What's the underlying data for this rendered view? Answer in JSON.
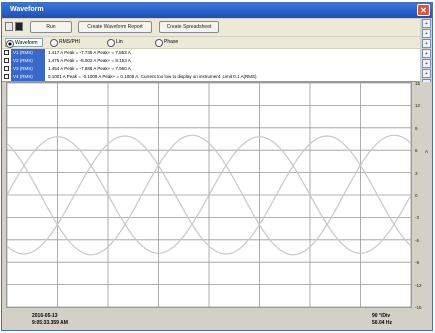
{
  "window": {
    "title": "Waveform"
  },
  "toolbar": {
    "run_label": "Run",
    "spreadsheet_btn": "Create Waveform Report",
    "report_btn": "Create Spreadsheet"
  },
  "radio": {
    "options": [
      {
        "label": "Waveform",
        "selected": true
      },
      {
        "label": "RMS/PHI",
        "selected": false
      },
      {
        "label": "Lin",
        "selected": false
      },
      {
        "label": "Phase",
        "selected": false
      }
    ]
  },
  "readings": [
    {
      "channel": "V1 (RMS)",
      "text": "1.417 A   Peak = -7.735 A   Peak+ = 7.853 A"
    },
    {
      "channel": "V2 (RMS)",
      "text": "1.475 A   Peak = -8.002 A   Peak+ = 8.153 A"
    },
    {
      "channel": "V3 (RMS)",
      "text": "1.454 A   Peak = -7.888 A   Peak+ = 7.960 A"
    },
    {
      "channel": "V4 (RMS)",
      "text": "0.1001 A  Peak = -0.1008 A  Peak+ = 0.1008 A, Current too low to display on instrument. Limit 0.1 A(RMS)"
    }
  ],
  "y_axis_ticks": [
    "15",
    "12",
    "9",
    "6",
    "3",
    "0",
    "-3",
    "-6",
    "-9",
    "-12",
    "-15"
  ],
  "y_axis_unit": "A",
  "footer": {
    "date": "2016-05-13",
    "time": "9:05:33.359 AM",
    "scale": "90 °/Div",
    "freq": "50.04 Hz"
  },
  "side_buttons": [
    "+",
    "+",
    "+",
    "+",
    "+",
    "+",
    "+",
    "+",
    "+",
    "+",
    "+",
    "+",
    "+",
    "+",
    "+"
  ],
  "chart_data": {
    "type": "line",
    "x_divisions": 8,
    "y_divisions": 10,
    "ylim": [
      -15,
      15
    ],
    "series": [
      {
        "amplitude": 7.8,
        "phase_deg": 0,
        "color": "#c8c8c8"
      },
      {
        "amplitude": 8.0,
        "phase_deg": 120,
        "color": "#c8c8c8"
      },
      {
        "amplitude": 7.9,
        "phase_deg": 240,
        "color": "#c8c8c8"
      }
    ],
    "colors": {
      "grid": "#9a9a9a",
      "frame": "#808080"
    }
  }
}
